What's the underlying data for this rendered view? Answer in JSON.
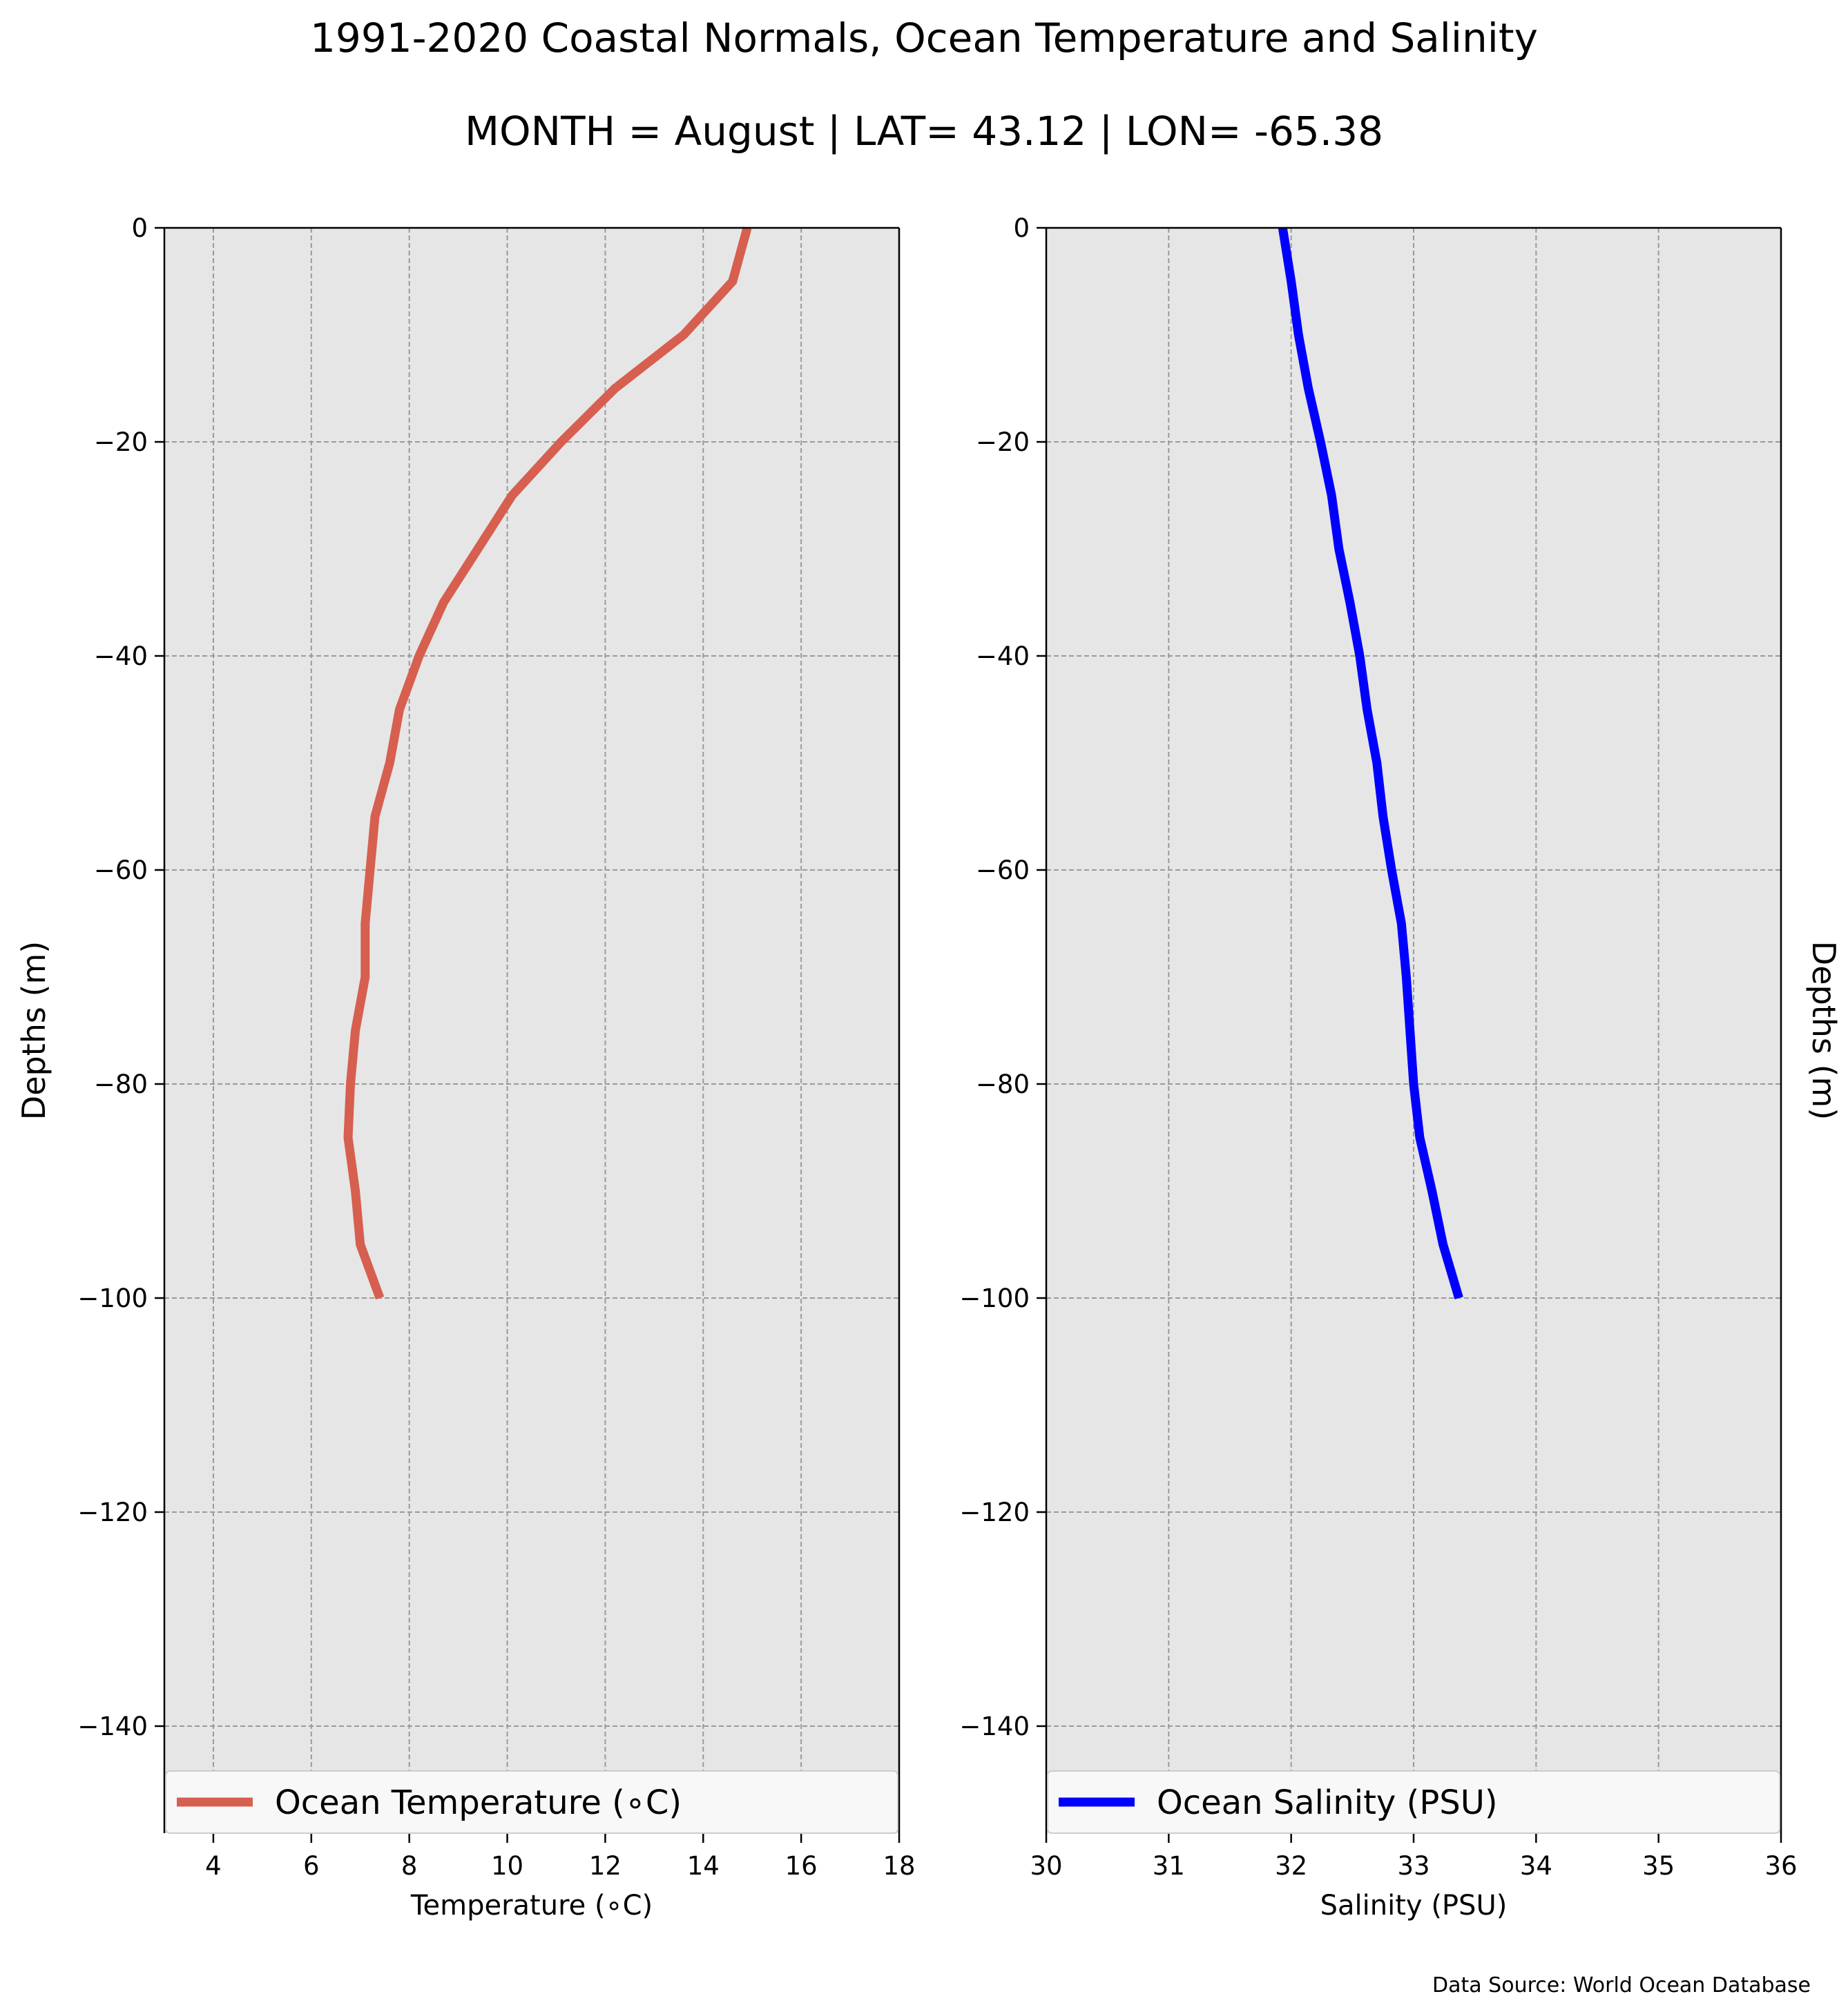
{
  "title": "1991-2020 Coastal Normals, Ocean Temperature and Salinity",
  "subtitle": "MONTH = August | LAT= 43.12 | LON= -65.38",
  "source": "Data Source: World Ocean Database",
  "chart_data": [
    {
      "type": "line",
      "xlabel": "Temperature (∘C)",
      "ylabel": "Depths (m)",
      "xlim": [
        3,
        18
      ],
      "ylim": [
        -150,
        0
      ],
      "xticks": [
        4,
        6,
        8,
        10,
        12,
        14,
        16,
        18
      ],
      "xtick_labels": [
        "4",
        "6",
        "8",
        "10",
        "12",
        "14",
        "16",
        "18"
      ],
      "yticks": [
        0,
        -20,
        -40,
        -60,
        -80,
        -100,
        -120,
        -140
      ],
      "ytick_labels": [
        "0",
        "−20",
        "−40",
        "−60",
        "−80",
        "−100",
        "−120",
        "−140"
      ],
      "grid": true,
      "legend": "bottom",
      "series": [
        {
          "name": "Ocean Temperature (∘C)",
          "color": "#d65f50",
          "x": [
            14.9,
            14.6,
            13.6,
            12.2,
            11.1,
            10.1,
            9.4,
            8.7,
            8.2,
            7.8,
            7.6,
            7.3,
            7.2,
            7.1,
            7.1,
            6.9,
            6.8,
            6.75,
            6.9,
            7.0,
            7.4
          ],
          "y": [
            0,
            -5,
            -10,
            -15,
            -20,
            -25,
            -30,
            -35,
            -40,
            -45,
            -50,
            -55,
            -60,
            -65,
            -70,
            -75,
            -80,
            -85,
            -90,
            -95,
            -100
          ]
        }
      ]
    },
    {
      "type": "line",
      "xlabel": "Salinity (PSU)",
      "ylabel": "Depths (m)",
      "xlim": [
        30,
        36
      ],
      "ylim": [
        -150,
        0
      ],
      "xticks": [
        30,
        31,
        32,
        33,
        34,
        35,
        36
      ],
      "xtick_labels": [
        "30",
        "31",
        "32",
        "33",
        "34",
        "35",
        "36"
      ],
      "yticks": [
        0,
        -20,
        -40,
        -60,
        -80,
        -100,
        -120,
        -140
      ],
      "ytick_labels": [
        "0",
        "−20",
        "−40",
        "−60",
        "−80",
        "−100",
        "−120",
        "−140"
      ],
      "grid": true,
      "legend": "bottom",
      "series": [
        {
          "name": "Ocean Salinity (PSU)",
          "color": "#0000ff",
          "x": [
            31.93,
            32.0,
            32.06,
            32.14,
            32.24,
            32.33,
            32.39,
            32.48,
            32.56,
            32.62,
            32.7,
            32.75,
            32.82,
            32.9,
            32.94,
            32.97,
            33.0,
            33.05,
            33.15,
            33.24,
            33.37
          ],
          "y": [
            0,
            -5,
            -10,
            -15,
            -20,
            -25,
            -30,
            -35,
            -40,
            -45,
            -50,
            -55,
            -60,
            -65,
            -70,
            -75,
            -80,
            -85,
            -90,
            -95,
            -100
          ]
        }
      ]
    }
  ]
}
